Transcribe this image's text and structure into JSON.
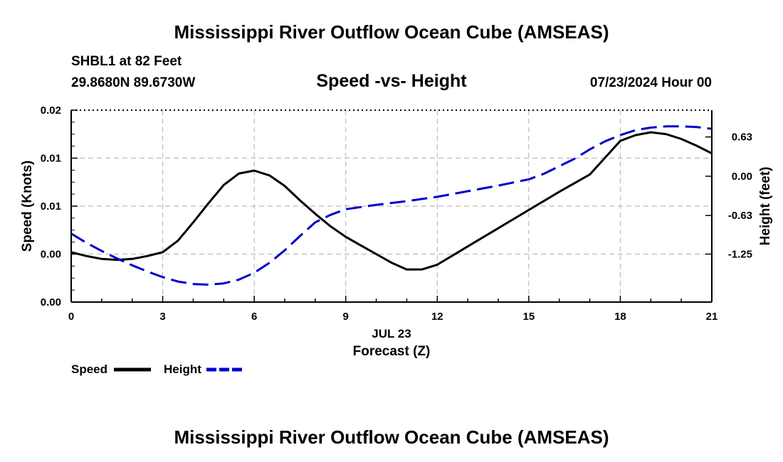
{
  "header": {
    "title": "Mississippi River Outflow Ocean Cube (AMSEAS)",
    "station": "SHBL1 at 82 Feet",
    "coords": "29.8680N  89.6730W",
    "subtitle": "Speed -vs- Height",
    "datetime": "07/23/2024 Hour 00"
  },
  "footer": {
    "title": "Mississippi River Outflow Ocean Cube (AMSEAS)"
  },
  "chart_data": {
    "type": "line",
    "title": "Speed -vs- Height",
    "xlabel": "Forecast (Z)",
    "xlabel_date": "JUL 23",
    "ylabel_left": "Speed (Knots)",
    "ylabel_right": "Height (feet)",
    "x_range": [
      0,
      21
    ],
    "x_ticks": [
      0,
      3,
      6,
      9,
      12,
      15,
      18,
      21
    ],
    "x_tick_labels": [
      "0",
      "3",
      "6",
      "9",
      "12",
      "15",
      "18",
      "21"
    ],
    "y_left_range": [
      0,
      0.02
    ],
    "y_left_ticks": [
      0,
      0.005,
      0.01,
      0.015,
      0.02
    ],
    "y_left_tick_labels": [
      "0.00",
      "0.00",
      "0.01",
      "0.01",
      "0.02"
    ],
    "y_right_range": [
      -2.02,
      1.06
    ],
    "y_right_ticks": [
      0.63,
      0.0,
      -0.63,
      -1.25
    ],
    "y_right_tick_labels": [
      "0.63",
      "0.00",
      "-0.63",
      "-1.25"
    ],
    "grid": true,
    "series": [
      {
        "name": "Speed",
        "axis": "left",
        "color": "#000000",
        "dash": "solid",
        "x": [
          0,
          0.5,
          1,
          1.5,
          2,
          2.5,
          3,
          3.5,
          4,
          4.5,
          5,
          5.5,
          6,
          6.5,
          7,
          7.5,
          8,
          8.5,
          9,
          9.5,
          10,
          10.5,
          11,
          11.5,
          12,
          13,
          14,
          15,
          16,
          17,
          18,
          18.5,
          19,
          19.5,
          20,
          20.5,
          21
        ],
        "values": [
          0.0052,
          0.0048,
          0.0045,
          0.0044,
          0.0045,
          0.0048,
          0.0052,
          0.0064,
          0.0083,
          0.0103,
          0.0122,
          0.0134,
          0.0137,
          0.0132,
          0.0121,
          0.0106,
          0.0092,
          0.0079,
          0.0068,
          0.0059,
          0.005,
          0.0041,
          0.0034,
          0.0034,
          0.0039,
          0.0058,
          0.0077,
          0.0096,
          0.0115,
          0.0133,
          0.0168,
          0.0174,
          0.0177,
          0.0175,
          0.017,
          0.0163,
          0.0155
        ]
      },
      {
        "name": "Height",
        "axis": "right",
        "color": "#0000cc",
        "dash": "dashed",
        "x": [
          0,
          0.5,
          1,
          1.5,
          2,
          2.5,
          3,
          3.5,
          4,
          4.5,
          5,
          5.5,
          6,
          6.5,
          7,
          7.5,
          8,
          8.5,
          9,
          10,
          11,
          12,
          13,
          14,
          15,
          15.5,
          16,
          16.5,
          17,
          17.5,
          18,
          18.5,
          19,
          19.5,
          20,
          20.5,
          21
        ],
        "values": [
          -0.92,
          -1.07,
          -1.2,
          -1.32,
          -1.43,
          -1.53,
          -1.62,
          -1.69,
          -1.73,
          -1.74,
          -1.72,
          -1.66,
          -1.55,
          -1.39,
          -1.19,
          -0.96,
          -0.74,
          -0.62,
          -0.53,
          -0.46,
          -0.4,
          -0.33,
          -0.24,
          -0.15,
          -0.05,
          0.04,
          0.16,
          0.28,
          0.43,
          0.56,
          0.66,
          0.74,
          0.78,
          0.8,
          0.8,
          0.79,
          0.76
        ]
      }
    ],
    "legend": [
      {
        "label": "Speed",
        "color": "#000000",
        "dash": "solid"
      },
      {
        "label": "Height",
        "color": "#0000cc",
        "dash": "dashed"
      }
    ],
    "legend_position": "bottom-left"
  }
}
